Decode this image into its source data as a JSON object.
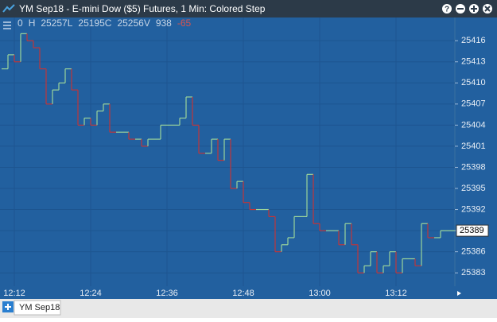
{
  "chart_data": {
    "type": "step",
    "title": "YM Sep18 - E-mini Dow ($5) Futures, 1 Min: Colored Step",
    "header": [
      "0",
      "H",
      "25257L",
      "25195C",
      "25256V",
      "938",
      "-65"
    ],
    "categories": [
      null,
      null,
      "12:12",
      null,
      null,
      null,
      null,
      null,
      null,
      null,
      null,
      null,
      null,
      null,
      "12:24",
      null,
      null,
      null,
      null,
      null,
      null,
      null,
      null,
      null,
      null,
      null,
      "12:36",
      null,
      null,
      null,
      null,
      null,
      null,
      null,
      null,
      null,
      null,
      null,
      "12:48",
      null,
      null,
      null,
      null,
      null,
      null,
      null,
      null,
      null,
      null,
      null,
      "13:00",
      null,
      null,
      null,
      null,
      null,
      null,
      null,
      null,
      null,
      null,
      null,
      "13:12",
      null,
      null,
      null,
      null,
      null,
      null,
      null
    ],
    "values": [
      25412,
      25414,
      25413,
      25417,
      25416,
      25415,
      25412,
      25407,
      25409,
      25410,
      25412,
      25409,
      25404,
      25405,
      25404,
      25406,
      25407,
      25403,
      25403,
      25403,
      25402,
      25402,
      25401,
      25402,
      25402,
      25404,
      25404,
      25404,
      25405,
      25408,
      25404,
      25400,
      25400,
      25402,
      25399,
      25402,
      25395,
      25396,
      25393,
      25392,
      25392,
      25392,
      25391,
      25386,
      25387,
      25388,
      25391,
      25391,
      25397,
      25390,
      25389,
      25389,
      25389,
      25387,
      25390,
      25387,
      25383,
      25384,
      25386,
      25383,
      25384,
      25386,
      25383,
      25385,
      25385,
      25384,
      25390,
      25388,
      25388,
      25389
    ],
    "up_color": "#9bd49b",
    "down_color": "#c0353a",
    "last_price": 25389,
    "ylim": [
      25381.1,
      25419.3
    ],
    "yticks": [
      25383,
      25386,
      25389,
      25392,
      25395,
      25398,
      25401,
      25404,
      25407,
      25410,
      25413,
      25416
    ],
    "grid": true
  },
  "tabs": [
    "YM Sep18"
  ]
}
